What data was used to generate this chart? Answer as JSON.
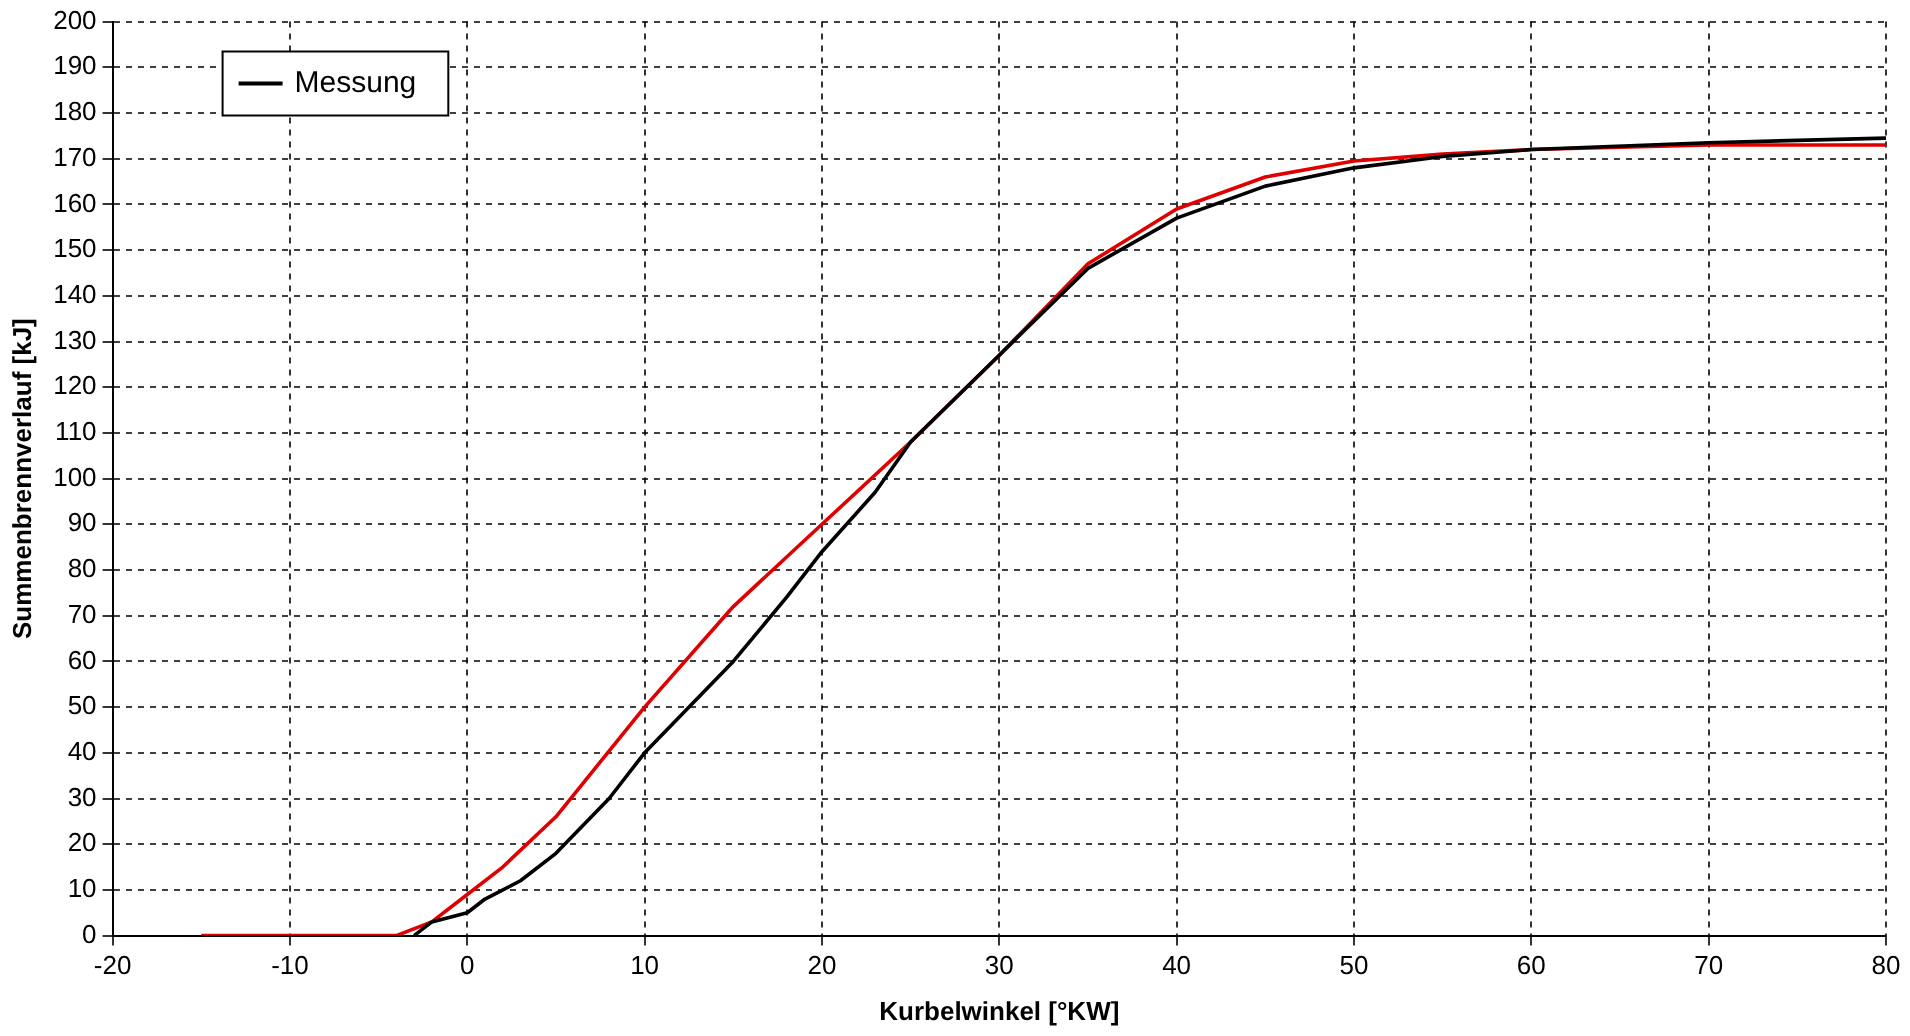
{
  "chart_data": {
    "type": "line",
    "xlabel": "Kurbelwinkel [°KW]",
    "ylabel": "Summenbrennverlauf [kJ]",
    "xlim": [
      -20,
      80
    ],
    "xticks": [
      -20,
      -10,
      0,
      10,
      20,
      30,
      40,
      50,
      60,
      70,
      80
    ],
    "ylim": [
      0,
      200
    ],
    "yticks": [
      0,
      10,
      20,
      30,
      40,
      50,
      60,
      70,
      80,
      90,
      100,
      110,
      120,
      130,
      140,
      150,
      160,
      170,
      180,
      190,
      200
    ],
    "grid": true,
    "legend": "top left",
    "marker": "none",
    "line_style": "solid",
    "series": [
      {
        "name": "Messung",
        "color": "#000000",
        "x": [
          -3,
          -2,
          0,
          1,
          3,
          5,
          8,
          10,
          12,
          15,
          18,
          20,
          23,
          25,
          30,
          35,
          40,
          45,
          50,
          55,
          60,
          70,
          80
        ],
        "values": [
          0,
          3,
          5,
          8,
          12,
          18,
          30,
          40,
          48,
          60,
          74,
          84,
          97,
          108,
          127,
          146,
          157,
          164,
          168,
          170.5,
          172,
          173.5,
          174.5
        ]
      },
      {
        "color": "#e00000",
        "x": [
          -15,
          -4,
          -2,
          0,
          2,
          5,
          10,
          15,
          20,
          25,
          30,
          35,
          40,
          45,
          50,
          55,
          60,
          70,
          80
        ],
        "values": [
          0,
          0,
          3,
          9,
          15,
          26,
          50,
          72,
          90,
          108,
          127,
          147,
          159,
          166,
          169.5,
          171,
          172,
          173,
          173
        ]
      }
    ]
  }
}
